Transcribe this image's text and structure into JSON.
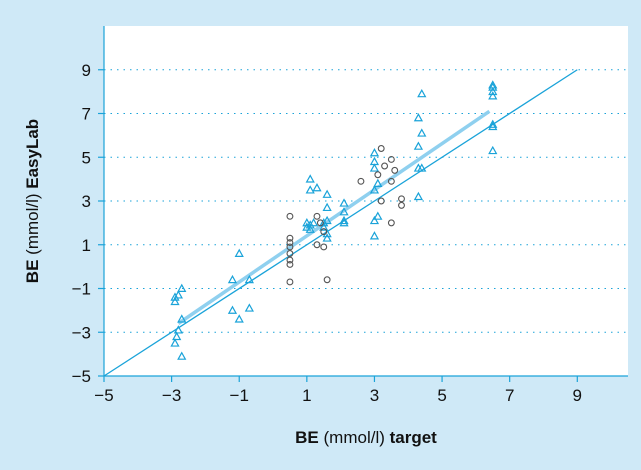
{
  "chart_data": {
    "type": "scatter",
    "title": "",
    "xlabel": {
      "prefix": "BE",
      "middle": " (mmol/l) ",
      "suffix": "target"
    },
    "ylabel": {
      "prefix": "BE",
      "middle": " (mmol/l) ",
      "suffix": "EasyLab"
    },
    "xlim": [
      -5,
      10.5
    ],
    "ylim": [
      -5,
      11
    ],
    "xticks": [
      -5,
      -3,
      -1,
      1,
      3,
      5,
      7,
      9
    ],
    "yticks": [
      -5,
      -3,
      -1,
      1,
      3,
      5,
      7,
      9
    ],
    "xtick_labels": [
      "−5",
      "−3",
      "−1",
      "1",
      "3",
      "5",
      "7",
      "9"
    ],
    "ytick_labels": [
      "−5",
      "−3",
      "−1",
      "1",
      "3",
      "5",
      "7",
      "9"
    ],
    "grid": "horizontal-dotted",
    "colors": {
      "background": "#cfe9f7",
      "plot": "#ffffff",
      "triangle": "#1aa3d9",
      "circle": "#555555",
      "regression": "#8fd0ef",
      "identity": "#1aa3d9",
      "grid": "#1aa3d9"
    },
    "series": [
      {
        "marker": "triangle",
        "points": [
          [
            -2.9,
            -1.4
          ],
          [
            -2.9,
            -1.6
          ],
          [
            -2.8,
            -1.3
          ],
          [
            -2.7,
            -1.0
          ],
          [
            -2.8,
            -2.9
          ],
          [
            -2.85,
            -3.2
          ],
          [
            -2.9,
            -3.5
          ],
          [
            -2.7,
            -2.4
          ],
          [
            -2.7,
            -4.1
          ],
          [
            -1.2,
            -0.6
          ],
          [
            -1.0,
            0.6
          ],
          [
            -0.7,
            -0.6
          ],
          [
            -0.7,
            -1.9
          ],
          [
            -1.2,
            -2.0
          ],
          [
            -1.0,
            -2.4
          ],
          [
            1.0,
            1.8
          ],
          [
            1.1,
            1.9
          ],
          [
            1.0,
            2.0
          ],
          [
            1.1,
            1.7
          ],
          [
            1.2,
            2.0
          ],
          [
            1.1,
            3.5
          ],
          [
            1.1,
            4.0
          ],
          [
            1.3,
            3.6
          ],
          [
            1.6,
            3.3
          ],
          [
            1.6,
            2.7
          ],
          [
            1.5,
            2.0
          ],
          [
            1.6,
            2.1
          ],
          [
            1.5,
            1.8
          ],
          [
            1.6,
            1.5
          ],
          [
            1.6,
            1.3
          ],
          [
            2.1,
            2.9
          ],
          [
            2.1,
            2.5
          ],
          [
            2.1,
            2.1
          ],
          [
            2.1,
            2.0
          ],
          [
            3.0,
            5.2
          ],
          [
            3.0,
            4.8
          ],
          [
            3.0,
            4.5
          ],
          [
            3.1,
            3.8
          ],
          [
            3.0,
            3.5
          ],
          [
            3.1,
            2.3
          ],
          [
            3.0,
            2.1
          ],
          [
            3.0,
            1.4
          ],
          [
            4.4,
            7.9
          ],
          [
            4.3,
            6.8
          ],
          [
            4.4,
            6.1
          ],
          [
            4.3,
            5.5
          ],
          [
            4.3,
            4.5
          ],
          [
            4.4,
            4.5
          ],
          [
            4.3,
            3.2
          ],
          [
            6.5,
            8.3
          ],
          [
            6.5,
            8.2
          ],
          [
            6.5,
            8.0
          ],
          [
            6.5,
            7.8
          ],
          [
            6.5,
            6.5
          ],
          [
            6.5,
            6.4
          ],
          [
            6.5,
            5.3
          ]
        ]
      },
      {
        "marker": "circle",
        "points": [
          [
            0.5,
            2.3
          ],
          [
            0.5,
            1.3
          ],
          [
            0.5,
            1.1
          ],
          [
            0.5,
            0.9
          ],
          [
            0.5,
            0.6
          ],
          [
            0.5,
            0.3
          ],
          [
            0.5,
            0.1
          ],
          [
            0.5,
            -0.7
          ],
          [
            1.3,
            2.3
          ],
          [
            1.3,
            1.0
          ],
          [
            1.5,
            0.9
          ],
          [
            1.6,
            -0.6
          ],
          [
            1.4,
            2.0
          ],
          [
            1.5,
            1.6
          ],
          [
            2.6,
            3.9
          ],
          [
            3.2,
            5.4
          ],
          [
            3.1,
            4.2
          ],
          [
            3.3,
            4.6
          ],
          [
            3.5,
            4.9
          ],
          [
            3.6,
            4.4
          ],
          [
            3.5,
            3.9
          ],
          [
            3.2,
            3.0
          ],
          [
            3.5,
            2.0
          ],
          [
            3.8,
            3.1
          ],
          [
            3.8,
            2.8
          ]
        ]
      }
    ],
    "lines": [
      {
        "kind": "regression",
        "from": [
          -2.8,
          -2.6
        ],
        "to": [
          6.4,
          7.1
        ]
      },
      {
        "kind": "identity",
        "from": [
          -5,
          -5
        ],
        "to": [
          9,
          9
        ]
      }
    ]
  }
}
